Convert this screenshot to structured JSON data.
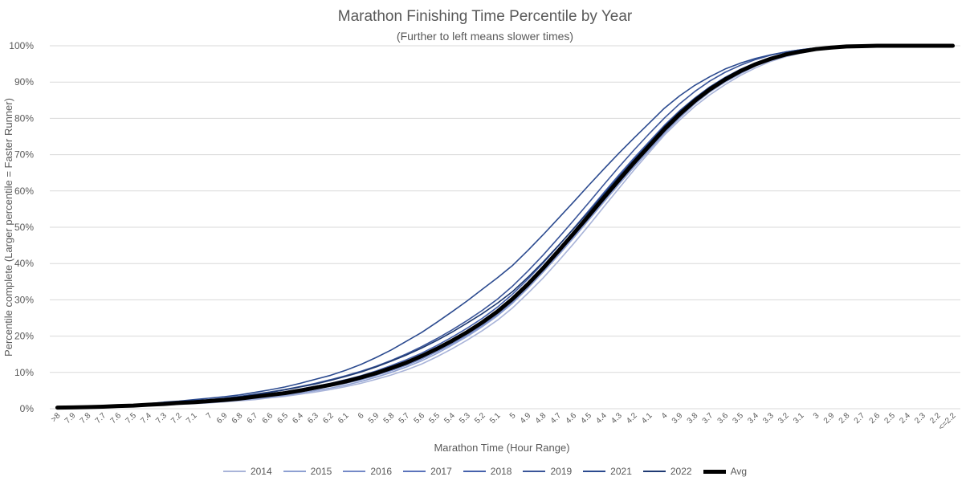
{
  "chart_data": {
    "type": "line",
    "title": "Marathon Finishing Time Percentile by Year",
    "subtitle": "(Further to left means slower times)",
    "xlabel": "Marathon Time (Hour Range)",
    "ylabel": "Percentile complete (Larger percentile = Faster Runner)",
    "ylim": [
      0,
      100
    ],
    "yticks": [
      "0%",
      "10%",
      "20%",
      "30%",
      "40%",
      "50%",
      "60%",
      "70%",
      "80%",
      "90%",
      "100%"
    ],
    "grid": true,
    "legend_position": "bottom",
    "categories": [
      ">8",
      "7.9",
      "7.8",
      "7.7",
      "7.6",
      "7.5",
      "7.4",
      "7.3",
      "7.2",
      "7.1",
      "7",
      "6.9",
      "6.8",
      "6.7",
      "6.6",
      "6.5",
      "6.4",
      "6.3",
      "6.2",
      "6.1",
      "6",
      "5.9",
      "5.8",
      "5.7",
      "5.6",
      "5.5",
      "5.4",
      "5.3",
      "5.2",
      "5.1",
      "5",
      "4.9",
      "4.8",
      "4.7",
      "4.6",
      "4.5",
      "4.4",
      "4.3",
      "4.2",
      "4.1",
      "4",
      "3.9",
      "3.8",
      "3.7",
      "3.6",
      "3.5",
      "3.4",
      "3.3",
      "3.2",
      "3.1",
      "3",
      "2.9",
      "2.8",
      "2.7",
      "2.6",
      "2.5",
      "2.4",
      "2.3",
      "2.2",
      "<=2.2"
    ],
    "series": [
      {
        "name": "2014",
        "color": "#a9b4d9",
        "width": 1.6,
        "values": [
          0.3,
          0.3,
          0.4,
          0.5,
          0.6,
          0.7,
          0.9,
          1.0,
          1.2,
          1.4,
          1.6,
          1.9,
          2.2,
          2.5,
          3.0,
          3.4,
          4.0,
          4.6,
          5.3,
          6.1,
          7.0,
          8.1,
          9.3,
          10.7,
          12.3,
          14.3,
          16.5,
          18.9,
          21.5,
          24.4,
          27.8,
          31.8,
          36.0,
          40.6,
          45.4,
          50.4,
          55.6,
          60.7,
          65.8,
          70.6,
          75.4,
          79.5,
          83.3,
          86.5,
          89.3,
          91.8,
          93.9,
          95.7,
          97.0,
          98.0,
          98.8,
          99.4,
          99.7,
          99.9,
          100,
          100,
          100,
          100,
          100,
          100
        ]
      },
      {
        "name": "2015",
        "color": "#8ea0d2",
        "width": 1.6,
        "values": [
          0.3,
          0.3,
          0.4,
          0.5,
          0.7,
          0.8,
          1.0,
          1.1,
          1.3,
          1.5,
          1.8,
          2.0,
          2.4,
          2.8,
          3.2,
          3.7,
          4.3,
          5.0,
          5.7,
          6.5,
          7.5,
          8.7,
          10.0,
          11.5,
          13.2,
          15.2,
          17.5,
          19.9,
          22.6,
          25.6,
          29.1,
          33.2,
          37.6,
          42.2,
          47.0,
          51.9,
          56.9,
          61.8,
          66.6,
          71.2,
          75.9,
          80.1,
          84.0,
          87.3,
          90.0,
          92.3,
          94.4,
          96.0,
          97.2,
          98.1,
          98.9,
          99.4,
          99.7,
          99.9,
          100,
          100,
          100,
          100,
          100,
          100
        ]
      },
      {
        "name": "2016",
        "color": "#7489c7",
        "width": 1.6,
        "values": [
          0.3,
          0.4,
          0.5,
          0.6,
          0.7,
          0.9,
          1.1,
          1.3,
          1.5,
          1.7,
          2.0,
          2.3,
          2.7,
          3.1,
          3.6,
          4.1,
          4.7,
          5.4,
          6.2,
          7.0,
          8.0,
          9.2,
          10.5,
          12.0,
          13.7,
          15.7,
          17.9,
          20.3,
          23.0,
          26.0,
          29.5,
          33.6,
          38.0,
          42.7,
          47.5,
          52.4,
          57.4,
          62.3,
          67.1,
          71.7,
          76.3,
          80.5,
          84.3,
          87.6,
          90.3,
          92.6,
          94.6,
          96.2,
          97.4,
          98.3,
          99.0,
          99.5,
          99.8,
          99.9,
          100,
          100,
          100,
          100,
          100,
          100
        ]
      },
      {
        "name": "2017",
        "color": "#5b73bb",
        "width": 1.6,
        "values": [
          0.3,
          0.4,
          0.5,
          0.6,
          0.8,
          0.9,
          1.1,
          1.3,
          1.6,
          1.8,
          2.1,
          2.4,
          2.8,
          3.3,
          3.8,
          4.3,
          5.0,
          5.7,
          6.5,
          7.4,
          8.4,
          9.6,
          11.0,
          12.5,
          14.2,
          16.2,
          18.4,
          20.9,
          23.6,
          26.6,
          30.2,
          34.2,
          38.6,
          43.3,
          48.1,
          53.0,
          58.0,
          62.9,
          67.7,
          72.3,
          76.9,
          81.1,
          84.8,
          88.0,
          90.7,
          93.0,
          95.0,
          96.5,
          97.6,
          98.4,
          99.1,
          99.5,
          99.8,
          99.9,
          100,
          100,
          100,
          100,
          100,
          100
        ]
      },
      {
        "name": "2018",
        "color": "#4561ac",
        "width": 1.6,
        "values": [
          0.3,
          0.4,
          0.5,
          0.6,
          0.8,
          1.0,
          1.2,
          1.4,
          1.7,
          2.0,
          2.3,
          2.6,
          3.1,
          3.6,
          4.1,
          4.7,
          5.4,
          6.2,
          7.0,
          8.0,
          9.1,
          10.4,
          11.9,
          13.5,
          15.3,
          17.4,
          19.7,
          22.2,
          24.9,
          28.0,
          31.6,
          35.7,
          40.1,
          44.8,
          49.6,
          54.5,
          59.5,
          64.4,
          69.1,
          73.6,
          78.1,
          82.1,
          85.6,
          88.7,
          91.3,
          93.5,
          95.3,
          96.8,
          97.8,
          98.6,
          99.2,
          99.6,
          99.8,
          100,
          100,
          100,
          100,
          100,
          100,
          100
        ]
      },
      {
        "name": "2019",
        "color": "#3a5599",
        "width": 1.6,
        "values": [
          0.3,
          0.4,
          0.5,
          0.6,
          0.8,
          1.0,
          1.3,
          1.6,
          1.9,
          2.2,
          2.5,
          2.9,
          3.4,
          4.0,
          4.6,
          5.3,
          6.1,
          7.0,
          8.0,
          9.1,
          10.3,
          11.7,
          13.3,
          15.1,
          17.1,
          19.3,
          21.7,
          24.3,
          27.1,
          30.2,
          33.8,
          37.9,
          42.3,
          47.0,
          51.8,
          56.7,
          61.7,
          66.6,
          71.3,
          75.8,
          80.1,
          84.0,
          87.4,
          90.3,
          92.7,
          94.6,
          96.2,
          97.4,
          98.3,
          98.9,
          99.4,
          99.7,
          99.9,
          100,
          100,
          100,
          100,
          100,
          100,
          100
        ]
      },
      {
        "name": "2021",
        "color": "#2b4a8f",
        "width": 1.6,
        "values": [
          0.3,
          0.4,
          0.6,
          0.7,
          0.9,
          1.1,
          1.4,
          1.8,
          2.1,
          2.5,
          2.9,
          3.3,
          3.8,
          4.5,
          5.2,
          6.0,
          7.0,
          8.1,
          9.2,
          10.6,
          12.2,
          14.1,
          16.2,
          18.6,
          21.0,
          23.8,
          26.7,
          29.7,
          32.9,
          36.1,
          39.5,
          43.6,
          47.9,
          52.4,
          56.9,
          61.5,
          66.0,
          70.4,
          74.6,
          78.7,
          82.8,
          86.2,
          89.1,
          91.5,
          93.6,
          95.2,
          96.5,
          97.5,
          98.3,
          98.9,
          99.4,
          99.7,
          99.9,
          100,
          100,
          100,
          100,
          100,
          100,
          100
        ]
      },
      {
        "name": "2022",
        "color": "#1f3a73",
        "width": 1.6,
        "values": [
          0.3,
          0.4,
          0.5,
          0.6,
          0.8,
          1.0,
          1.2,
          1.5,
          1.8,
          2.1,
          2.4,
          2.8,
          3.3,
          3.9,
          4.5,
          5.2,
          6.0,
          6.8,
          7.8,
          8.9,
          10.1,
          11.5,
          13.1,
          14.8,
          16.7,
          18.8,
          21.1,
          23.6,
          26.2,
          29.1,
          32.3,
          36.2,
          40.4,
          44.9,
          49.5,
          54.2,
          59.1,
          63.9,
          68.6,
          73.2,
          77.8,
          81.9,
          85.5,
          88.6,
          91.2,
          93.4,
          95.2,
          96.7,
          97.8,
          98.6,
          99.2,
          99.6,
          99.8,
          100,
          100,
          100,
          100,
          100,
          100,
          100
        ]
      },
      {
        "name": "Avg",
        "color": "#000000",
        "width": 5,
        "values": [
          0.3,
          0.35,
          0.45,
          0.55,
          0.75,
          0.85,
          1.1,
          1.3,
          1.6,
          1.8,
          2.1,
          2.4,
          2.8,
          3.3,
          3.8,
          4.3,
          5.0,
          5.8,
          6.6,
          7.5,
          8.6,
          9.8,
          11.2,
          12.7,
          14.5,
          16.5,
          18.7,
          21.1,
          23.8,
          26.8,
          30.3,
          34.3,
          38.7,
          43.4,
          48.2,
          53.1,
          58.1,
          63.0,
          67.8,
          72.4,
          77.0,
          81.1,
          84.8,
          88.0,
          90.7,
          93.0,
          94.9,
          96.4,
          97.6,
          98.4,
          99.1,
          99.5,
          99.8,
          99.9,
          100,
          100,
          100,
          100,
          100,
          100
        ]
      }
    ]
  }
}
